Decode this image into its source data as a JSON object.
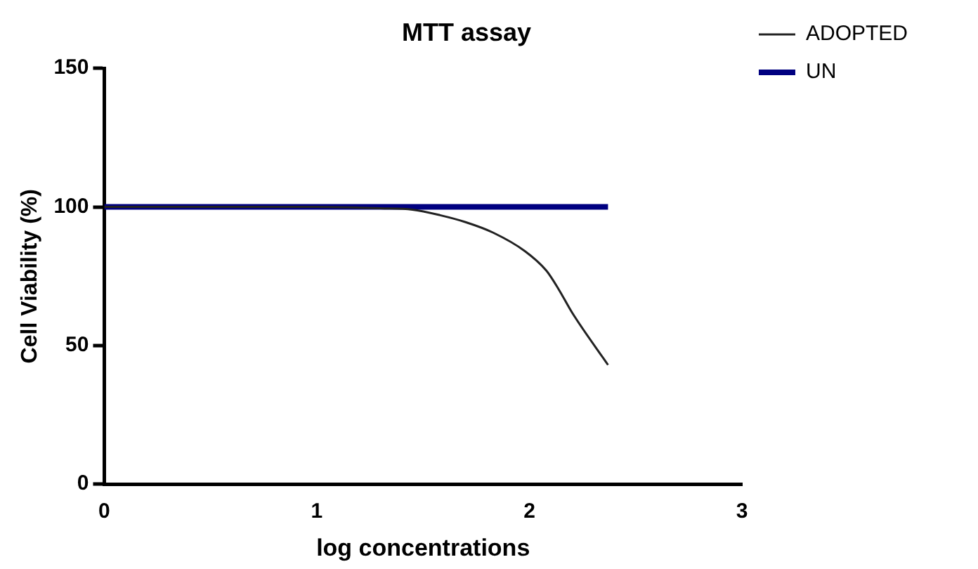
{
  "chart_data": {
    "type": "line",
    "title": "MTT assay",
    "xlabel": "log concentrations",
    "ylabel": "Cell Viability (%)",
    "xlim": [
      0,
      3
    ],
    "xticks": [
      0,
      1,
      2,
      3
    ],
    "ylim": [
      0,
      150
    ],
    "yticks": [
      0,
      50,
      100,
      150
    ],
    "grid": false,
    "legend": "top right",
    "marker": "none",
    "line_style": "solid",
    "series": [
      {
        "name": "ADOPTED",
        "color": "#222222",
        "x": [
          0,
          0.5,
          1,
          1.3,
          1.45,
          1.58,
          1.7,
          1.83,
          1.98,
          2.08,
          2.14,
          2.2,
          2.37
        ],
        "values": [
          100,
          100,
          100,
          99.5,
          99,
          97,
          94.5,
          90.7,
          84,
          77,
          70,
          62,
          43
        ]
      },
      {
        "name": "UN",
        "color": "#000080",
        "x": [
          0,
          2.37
        ],
        "values": [
          100,
          100
        ]
      }
    ]
  }
}
